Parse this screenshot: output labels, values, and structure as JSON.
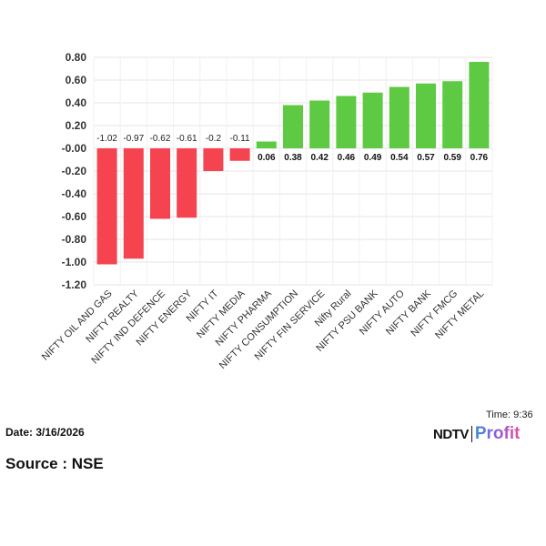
{
  "chart_data": {
    "type": "bar",
    "categories": [
      "NIFTY OIL AND GAS",
      "NIFTY REALTY",
      "NIFTY IND DEFENCE",
      "NIFTY ENERGY",
      "NIFTY IT",
      "NIFTY MEDIA",
      "NIFTY PHARMA",
      "NIFTY CONSUMPTION",
      "NIFTY FIN SERVICE",
      "Nifty Rural",
      "NIFTY PSU BANK",
      "NIFTY AUTO",
      "NIFTY BANK",
      "NIFTY FMCG",
      "NIFTY METAL"
    ],
    "values": [
      -1.02,
      -0.97,
      -0.62,
      -0.61,
      -0.2,
      -0.11,
      0.06,
      0.38,
      0.42,
      0.46,
      0.49,
      0.54,
      0.57,
      0.59,
      0.76
    ],
    "data_labels": [
      "-1.02",
      "-0.97",
      "-0.62",
      "-0.61",
      "-0.2",
      "-0.11",
      "0.06",
      "0.38",
      "0.42",
      "0.46",
      "0.49",
      "0.54",
      "0.57",
      "0.59",
      "0.76"
    ],
    "yticks": [
      "0.80",
      "0.60",
      "0.40",
      "0.20",
      "-0.00",
      "-0.20",
      "-0.40",
      "-0.60",
      "-0.80",
      "-1.00",
      "-1.20"
    ],
    "ytick_values": [
      0.8,
      0.6,
      0.4,
      0.2,
      0,
      -0.2,
      -0.4,
      -0.6,
      -0.8,
      -1.0,
      -1.2
    ],
    "ylim": [
      -1.2,
      0.8
    ],
    "grid": true,
    "colors": {
      "negative": "#f5444f",
      "positive": "#5ec942"
    },
    "title": "",
    "xlabel": "",
    "ylabel": ""
  },
  "footer": {
    "date": "Date: 3/16/2026",
    "source": "Source : NSE",
    "time": "Time: 9:36",
    "logo_ndtv": "NDTV",
    "logo_profit": "Profit"
  }
}
